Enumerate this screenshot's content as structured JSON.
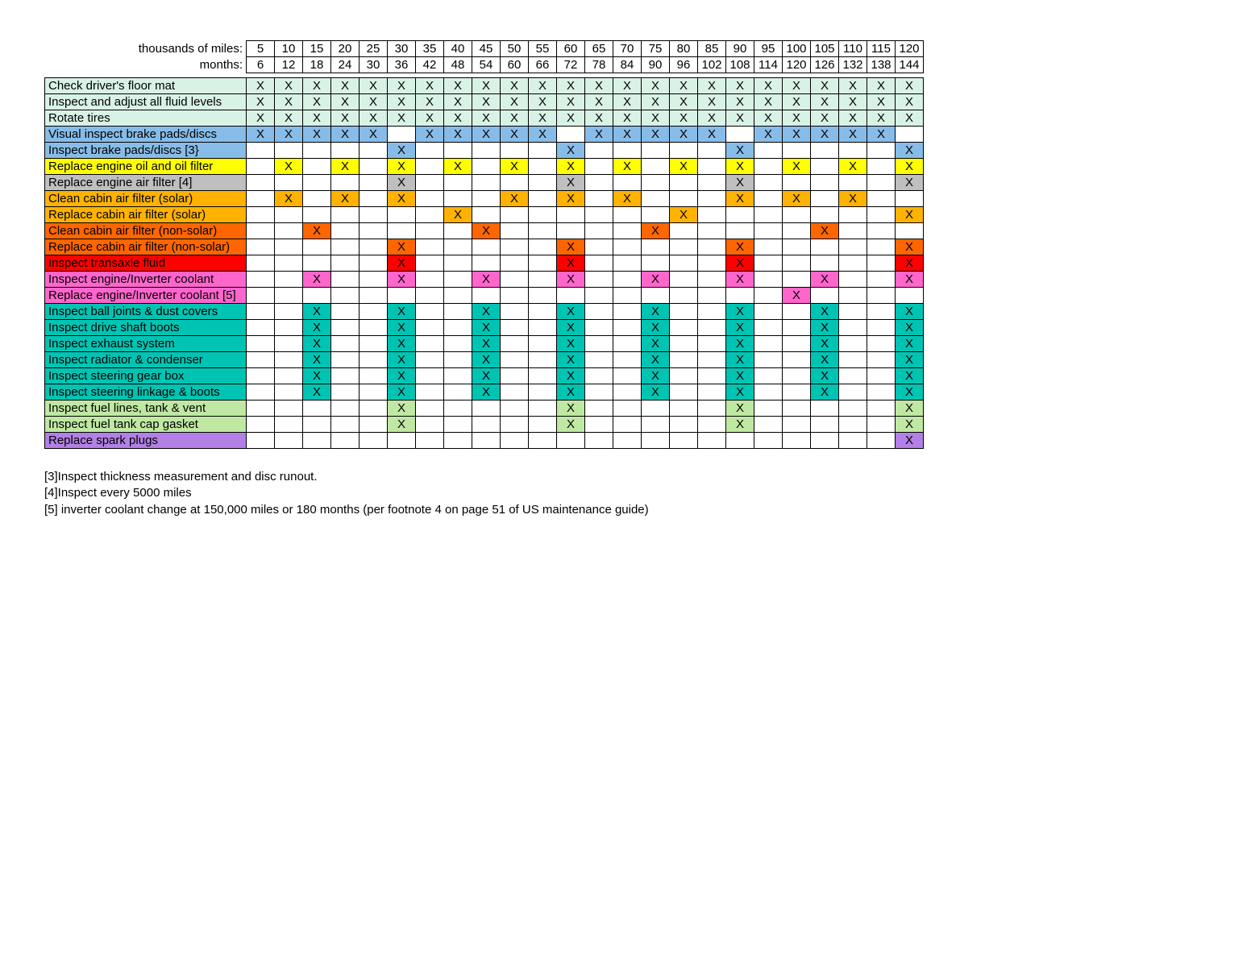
{
  "header": {
    "miles_label": "thousands of miles:",
    "months_label": "months:",
    "miles": [
      "5",
      "10",
      "15",
      "20",
      "25",
      "30",
      "35",
      "40",
      "45",
      "50",
      "55",
      "60",
      "65",
      "70",
      "75",
      "80",
      "85",
      "90",
      "95",
      "100",
      "105",
      "110",
      "115",
      "120"
    ],
    "months": [
      "6",
      "12",
      "18",
      "24",
      "30",
      "36",
      "42",
      "48",
      "54",
      "60",
      "66",
      "72",
      "78",
      "84",
      "90",
      "96",
      "102",
      "108",
      "114",
      "120",
      "126",
      "132",
      "138",
      "144"
    ]
  },
  "rows": [
    {
      "label": "Check driver's floor mat",
      "marks": [
        1,
        1,
        1,
        1,
        1,
        1,
        1,
        1,
        1,
        1,
        1,
        1,
        1,
        1,
        1,
        1,
        1,
        1,
        1,
        1,
        1,
        1,
        1,
        1
      ],
      "label_color": "#d9f2e6",
      "mark_color": "#d9f2e6"
    },
    {
      "label": "Inspect and adjust all fluid levels",
      "marks": [
        1,
        1,
        1,
        1,
        1,
        1,
        1,
        1,
        1,
        1,
        1,
        1,
        1,
        1,
        1,
        1,
        1,
        1,
        1,
        1,
        1,
        1,
        1,
        1
      ],
      "label_color": "#d9f2e6",
      "mark_color": "#d9f2e6"
    },
    {
      "label": "Rotate tires",
      "marks": [
        1,
        1,
        1,
        1,
        1,
        1,
        1,
        1,
        1,
        1,
        1,
        1,
        1,
        1,
        1,
        1,
        1,
        1,
        1,
        1,
        1,
        1,
        1,
        1
      ],
      "label_color": "#d9f2e6",
      "mark_color": "#d9f2e6"
    },
    {
      "label": "Visual inspect brake pads/discs",
      "marks": [
        1,
        1,
        1,
        1,
        1,
        0,
        1,
        1,
        1,
        1,
        1,
        0,
        1,
        1,
        1,
        1,
        1,
        0,
        1,
        1,
        1,
        1,
        1,
        0
      ],
      "label_color": "#88bce8",
      "mark_color": "#88bce8"
    },
    {
      "label": "Inspect brake pads/discs [3}",
      "marks": [
        0,
        0,
        0,
        0,
        0,
        1,
        0,
        0,
        0,
        0,
        0,
        1,
        0,
        0,
        0,
        0,
        0,
        1,
        0,
        0,
        0,
        0,
        0,
        1
      ],
      "label_color": "#88bce8",
      "mark_color": "#88bce8"
    },
    {
      "label": "Replace engine oil and oil filter",
      "marks": [
        0,
        1,
        0,
        1,
        0,
        1,
        0,
        1,
        0,
        1,
        0,
        1,
        0,
        1,
        0,
        1,
        0,
        1,
        0,
        1,
        0,
        1,
        0,
        1
      ],
      "label_color": "#ffff00",
      "mark_color": "#ffff00"
    },
    {
      "label": "Replace engine air filter [4]",
      "marks": [
        0,
        0,
        0,
        0,
        0,
        1,
        0,
        0,
        0,
        0,
        0,
        1,
        0,
        0,
        0,
        0,
        0,
        1,
        0,
        0,
        0,
        0,
        0,
        1
      ],
      "label_color": "#bfbfbf",
      "mark_color": "#bfbfbf"
    },
    {
      "label": "Clean cabin air filter (solar)",
      "marks": [
        0,
        1,
        0,
        1,
        0,
        1,
        0,
        0,
        0,
        1,
        0,
        1,
        0,
        1,
        0,
        0,
        0,
        1,
        0,
        1,
        0,
        1,
        0,
        0
      ],
      "label_color": "#ffb300",
      "mark_color": "#ffb300"
    },
    {
      "label": "Replace cabin air filter (solar)",
      "marks": [
        0,
        0,
        0,
        0,
        0,
        0,
        0,
        1,
        0,
        0,
        0,
        0,
        0,
        0,
        0,
        1,
        0,
        0,
        0,
        0,
        0,
        0,
        0,
        1
      ],
      "label_color": "#ffb300",
      "mark_color": "#ffb300"
    },
    {
      "label": "Clean cabin air filter (non-solar)",
      "marks": [
        0,
        0,
        1,
        0,
        0,
        0,
        0,
        0,
        1,
        0,
        0,
        0,
        0,
        0,
        1,
        0,
        0,
        0,
        0,
        0,
        1,
        0,
        0,
        0
      ],
      "label_color": "#ff6600",
      "mark_color": "#ff6600"
    },
    {
      "label": "Replace cabin air filter (non-solar)",
      "marks": [
        0,
        0,
        0,
        0,
        0,
        1,
        0,
        0,
        0,
        0,
        0,
        1,
        0,
        0,
        0,
        0,
        0,
        1,
        0,
        0,
        0,
        0,
        0,
        1
      ],
      "label_color": "#ff6600",
      "mark_color": "#ff6600"
    },
    {
      "label": "Inspect transaxle fluid",
      "marks": [
        0,
        0,
        0,
        0,
        0,
        1,
        0,
        0,
        0,
        0,
        0,
        1,
        0,
        0,
        0,
        0,
        0,
        1,
        0,
        0,
        0,
        0,
        0,
        1
      ],
      "label_color": "#ff0000",
      "mark_color": "#ff0000"
    },
    {
      "label": "Inspect engine/Inverter coolant",
      "marks": [
        0,
        0,
        1,
        0,
        0,
        1,
        0,
        0,
        1,
        0,
        0,
        1,
        0,
        0,
        1,
        0,
        0,
        1,
        0,
        0,
        1,
        0,
        0,
        1
      ],
      "label_color": "#ff66cc",
      "mark_color": "#ff66cc"
    },
    {
      "label": "Replace engine/Inverter coolant [5]",
      "marks": [
        0,
        0,
        0,
        0,
        0,
        0,
        0,
        0,
        0,
        0,
        0,
        0,
        0,
        0,
        0,
        0,
        0,
        0,
        0,
        1,
        0,
        0,
        0,
        0
      ],
      "label_color": "#ff66cc",
      "mark_color": "#ff66cc"
    },
    {
      "label": "Inspect ball joints & dust covers",
      "marks": [
        0,
        0,
        1,
        0,
        0,
        1,
        0,
        0,
        1,
        0,
        0,
        1,
        0,
        0,
        1,
        0,
        0,
        1,
        0,
        0,
        1,
        0,
        0,
        1
      ],
      "label_color": "#00c4b3",
      "mark_color": "#00c4b3"
    },
    {
      "label": "Inspect drive shaft boots",
      "marks": [
        0,
        0,
        1,
        0,
        0,
        1,
        0,
        0,
        1,
        0,
        0,
        1,
        0,
        0,
        1,
        0,
        0,
        1,
        0,
        0,
        1,
        0,
        0,
        1
      ],
      "label_color": "#00c4b3",
      "mark_color": "#00c4b3"
    },
    {
      "label": "Inspect exhaust system",
      "marks": [
        0,
        0,
        1,
        0,
        0,
        1,
        0,
        0,
        1,
        0,
        0,
        1,
        0,
        0,
        1,
        0,
        0,
        1,
        0,
        0,
        1,
        0,
        0,
        1
      ],
      "label_color": "#00c4b3",
      "mark_color": "#00c4b3"
    },
    {
      "label": "Inspect radiator & condenser",
      "marks": [
        0,
        0,
        1,
        0,
        0,
        1,
        0,
        0,
        1,
        0,
        0,
        1,
        0,
        0,
        1,
        0,
        0,
        1,
        0,
        0,
        1,
        0,
        0,
        1
      ],
      "label_color": "#00c4b3",
      "mark_color": "#00c4b3"
    },
    {
      "label": "Inspect steering gear box",
      "marks": [
        0,
        0,
        1,
        0,
        0,
        1,
        0,
        0,
        1,
        0,
        0,
        1,
        0,
        0,
        1,
        0,
        0,
        1,
        0,
        0,
        1,
        0,
        0,
        1
      ],
      "label_color": "#00c4b3",
      "mark_color": "#00c4b3"
    },
    {
      "label": "Inspect steering linkage & boots",
      "marks": [
        0,
        0,
        1,
        0,
        0,
        1,
        0,
        0,
        1,
        0,
        0,
        1,
        0,
        0,
        1,
        0,
        0,
        1,
        0,
        0,
        1,
        0,
        0,
        1
      ],
      "label_color": "#00c4b3",
      "mark_color": "#00c4b3"
    },
    {
      "label": "Inspect fuel lines, tank & vent",
      "marks": [
        0,
        0,
        0,
        0,
        0,
        1,
        0,
        0,
        0,
        0,
        0,
        1,
        0,
        0,
        0,
        0,
        0,
        1,
        0,
        0,
        0,
        0,
        0,
        1
      ],
      "label_color": "#bfe8a3",
      "mark_color": "#bfe8a3"
    },
    {
      "label": "Inspect fuel tank cap gasket",
      "marks": [
        0,
        0,
        0,
        0,
        0,
        1,
        0,
        0,
        0,
        0,
        0,
        1,
        0,
        0,
        0,
        0,
        0,
        1,
        0,
        0,
        0,
        0,
        0,
        1
      ],
      "label_color": "#bfe8a3",
      "mark_color": "#bfe8a3"
    },
    {
      "label": "Replace spark plugs",
      "marks": [
        0,
        0,
        0,
        0,
        0,
        0,
        0,
        0,
        0,
        0,
        0,
        0,
        0,
        0,
        0,
        0,
        0,
        0,
        0,
        0,
        0,
        0,
        0,
        1
      ],
      "label_color": "#b380e6",
      "mark_color": "#b380e6"
    }
  ],
  "footnotes": [
    "[3]Inspect thickness measurement and disc runout.",
    "[4]Inspect every 5000 miles",
    "[5] inverter coolant change at 150,000 miles or 180 months (per footnote 4 on page 51 of US maintenance guide)"
  ]
}
